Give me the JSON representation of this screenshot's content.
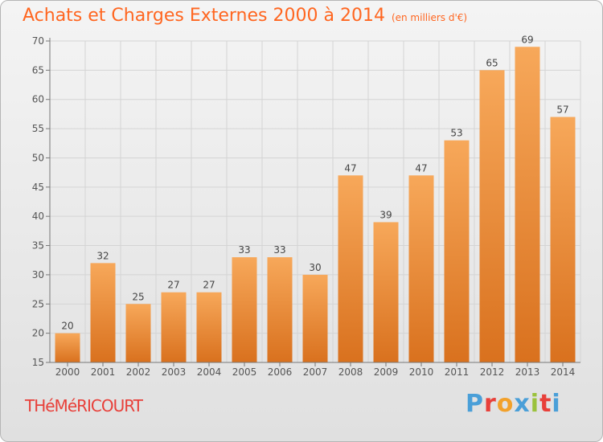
{
  "header": {
    "title": "Achats et Charges Externes 2000 à 2014",
    "subtitle": "(en milliers d'€)"
  },
  "footer": {
    "town": "THéMéRICOURT",
    "brand": "Proxiti"
  },
  "colors": {
    "title": "#ff6620",
    "town": "#e8403a",
    "bar_light": "#f7a85a",
    "bar_dark": "#d9711e",
    "brand_letters": [
      "#4a9fd8",
      "#e8403a",
      "#f2a12b",
      "#4a9fd8",
      "#9bc23c",
      "#e8403a",
      "#4a9fd8"
    ]
  },
  "chart_data": {
    "type": "bar",
    "categories": [
      "2000",
      "2001",
      "2002",
      "2003",
      "2004",
      "2005",
      "2006",
      "2007",
      "2008",
      "2009",
      "2010",
      "2011",
      "2012",
      "2013",
      "2014"
    ],
    "values": [
      20,
      32,
      25,
      27,
      27,
      33,
      33,
      30,
      47,
      39,
      47,
      53,
      65,
      69,
      57
    ],
    "ylim": [
      15,
      70
    ],
    "yticks": [
      15,
      20,
      25,
      30,
      35,
      40,
      45,
      50,
      55,
      60,
      65,
      70
    ],
    "grid": true,
    "data_labels": true
  }
}
